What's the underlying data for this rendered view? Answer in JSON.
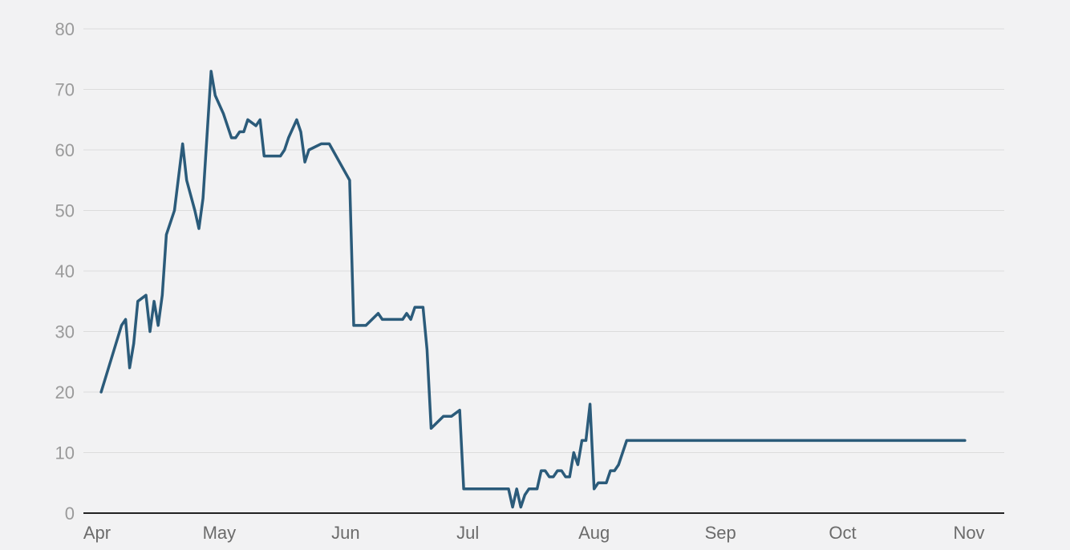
{
  "chart_data": {
    "type": "line",
    "title": "",
    "xlabel": "",
    "ylabel": "",
    "ylim": [
      0,
      80
    ],
    "xlim_day": [
      0,
      217
    ],
    "y_ticks": [
      0,
      10,
      20,
      30,
      40,
      50,
      60,
      70,
      80
    ],
    "x_ticks": [
      {
        "label": "Apr",
        "day": 0
      },
      {
        "label": "May",
        "day": 30
      },
      {
        "label": "Jun",
        "day": 61
      },
      {
        "label": "Jul",
        "day": 91
      },
      {
        "label": "Aug",
        "day": 122
      },
      {
        "label": "Sep",
        "day": 153
      },
      {
        "label": "Oct",
        "day": 183
      },
      {
        "label": "Nov",
        "day": 214
      }
    ],
    "grid": true,
    "legend": "none",
    "colors": {
      "series": "#2b5b7a",
      "grid": "#dcdcdc",
      "background": "#f2f2f3"
    },
    "series": [
      {
        "day": [
          1,
          6,
          7,
          8,
          9,
          10,
          12,
          13,
          14,
          15,
          16,
          17,
          19,
          21,
          22,
          24,
          25,
          26,
          28,
          29,
          31,
          33,
          34,
          35,
          36,
          37,
          39,
          40,
          41,
          42,
          43,
          45,
          46,
          47,
          49,
          50,
          51,
          52,
          55,
          57,
          62,
          63,
          64,
          66,
          69,
          70,
          72,
          74,
          75,
          76,
          77,
          78,
          79,
          80,
          81,
          82,
          85,
          86,
          87,
          89,
          90,
          91,
          92,
          94,
          96,
          98,
          100,
          101,
          102,
          103,
          104,
          105,
          106,
          107,
          108,
          109,
          110,
          111,
          112,
          113,
          114,
          115,
          116,
          117,
          118,
          119,
          120,
          121,
          122,
          123,
          125,
          126,
          127,
          128,
          130,
          131,
          133,
          135,
          137,
          138,
          139,
          140,
          142,
          143,
          145,
          147,
          149,
          150,
          152,
          154,
          156,
          157,
          159,
          161,
          163,
          165,
          168,
          170,
          172,
          174,
          177,
          179,
          180,
          182,
          183,
          185,
          187,
          188,
          190,
          192,
          194,
          196,
          198,
          200,
          201,
          202,
          203,
          204,
          206,
          207,
          209,
          211,
          213
        ],
        "values": [
          20,
          31,
          32,
          24,
          28,
          35,
          36,
          30,
          35,
          31,
          36,
          46,
          50,
          61,
          55,
          50,
          47,
          52,
          73,
          69,
          66,
          62,
          62,
          63,
          63,
          65,
          64,
          65,
          59,
          59,
          59,
          59,
          60,
          62,
          65,
          63,
          58,
          60,
          61,
          61,
          55,
          31,
          31,
          31,
          33,
          32,
          32,
          32,
          32,
          33,
          32,
          34,
          34,
          34,
          27,
          14,
          16,
          16,
          16,
          17,
          4,
          4,
          4,
          4,
          4,
          4,
          4,
          4,
          1,
          4,
          1,
          3,
          4,
          4,
          4,
          7,
          7,
          6,
          6,
          7,
          7,
          6,
          6,
          10,
          8,
          12,
          12,
          18,
          4,
          5,
          5,
          7,
          7,
          8,
          12,
          12,
          12,
          12,
          12,
          12,
          12,
          12,
          12,
          12,
          12,
          12,
          12,
          12,
          12,
          12,
          12,
          12,
          12,
          12,
          12,
          12,
          12,
          12,
          12,
          12,
          12,
          12,
          12,
          12,
          12,
          12,
          12,
          12,
          12,
          12,
          12,
          12,
          12,
          12,
          12,
          12,
          12,
          12,
          12,
          12,
          12,
          12,
          12
        ]
      }
    ]
  }
}
